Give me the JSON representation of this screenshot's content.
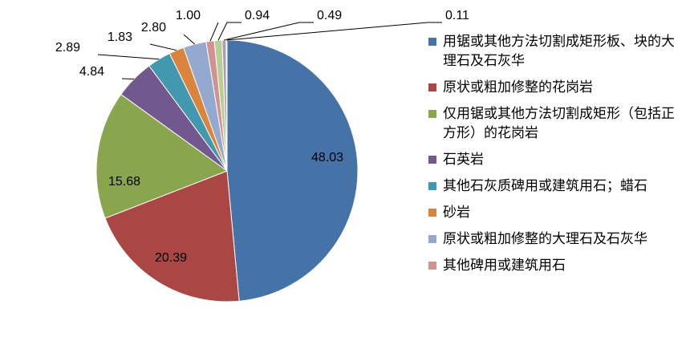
{
  "chart_data": {
    "type": "pie",
    "categories": [
      "用锯或其他方法切割成矩形板、块的大理石及石灰华",
      "原状或粗加修整的花岗岩",
      "仅用锯或其他方法切割成矩形（包括正方形）的花岗岩",
      "石英岩",
      "其他石灰质碑用或建筑用石；蜡石",
      "砂岩",
      "原状或粗加修整的大理石及石灰华",
      "其他碑用或建筑用石",
      null,
      null,
      null
    ],
    "values": [
      48.03,
      20.39,
      15.68,
      4.84,
      2.89,
      1.83,
      2.8,
      1.0,
      0.94,
      0.49,
      0.11
    ],
    "value_labels": [
      "48.03",
      "20.39",
      "15.68",
      "4.84",
      "2.89",
      "1.83",
      "2.80",
      "1.00",
      "0.94",
      "0.49",
      "0.11"
    ],
    "colors": [
      "#4572a7",
      "#aa4643",
      "#89a54e",
      "#71588f",
      "#4198af",
      "#db843d",
      "#93a9cf",
      "#d19392",
      "#b9cd96",
      "#a99bbd",
      "#92a8cd"
    ]
  }
}
